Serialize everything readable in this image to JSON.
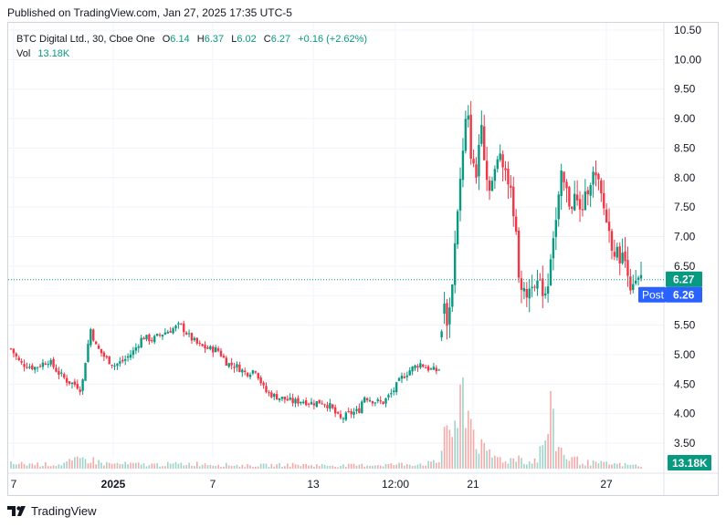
{
  "header": {
    "published": "Published on TradingView.com, Jan 27, 2025 17:35 UTC-5"
  },
  "legend": {
    "symbol": "BTC Digital Ltd., 30, Cboe One",
    "open_label": "O",
    "open": "6.14",
    "high_label": "H",
    "high": "6.37",
    "low_label": "L",
    "low": "6.02",
    "close_label": "C",
    "close": "6.27",
    "change": "+0.16 (+2.62%)",
    "vol_label": "Vol",
    "vol": "13.18K"
  },
  "footer": {
    "brand": "TradingView"
  },
  "colors": {
    "up": "#089981",
    "down": "#f23645",
    "vol_up": "#9ed3ca",
    "vol_down": "#f7a9a7",
    "grid": "#f0f3fa",
    "price_tag": "#089981",
    "post_tag": "#2962ff"
  },
  "chart_data": {
    "type": "candlestick",
    "y_ticks": [
      "10.50",
      "10.00",
      "9.50",
      "9.00",
      "8.50",
      "8.00",
      "7.50",
      "7.00",
      "6.50",
      "6.00",
      "5.50",
      "5.00",
      "4.50",
      "4.00",
      "3.50"
    ],
    "ylim": [
      3.15,
      10.75
    ],
    "x_ticks": [
      "7",
      "2025",
      "7",
      "13",
      "12:00",
      "21",
      "27"
    ],
    "last_price": {
      "value": 6.27,
      "label": "6.27"
    },
    "post_price": {
      "value": 6.26,
      "label": "6.26",
      "tag": "Post"
    },
    "volume_label": "13.18K",
    "price_path": [
      [
        0,
        5.1
      ],
      [
        2,
        4.85
      ],
      [
        5,
        4.78
      ],
      [
        8,
        4.9
      ],
      [
        10,
        4.7
      ],
      [
        12,
        4.55
      ],
      [
        14,
        4.48
      ],
      [
        15,
        4.4
      ],
      [
        16,
        5.0
      ],
      [
        17,
        5.45
      ],
      [
        18,
        5.15
      ],
      [
        20,
        4.95
      ],
      [
        22,
        4.82
      ],
      [
        24,
        4.9
      ],
      [
        26,
        5.05
      ],
      [
        28,
        5.3
      ],
      [
        30,
        5.25
      ],
      [
        32,
        5.35
      ],
      [
        34,
        5.42
      ],
      [
        36,
        5.5
      ],
      [
        38,
        5.3
      ],
      [
        40,
        5.15
      ],
      [
        42,
        5.1
      ],
      [
        44,
        5.08
      ],
      [
        46,
        4.85
      ],
      [
        48,
        4.8
      ],
      [
        50,
        4.68
      ],
      [
        52,
        4.75
      ],
      [
        54,
        4.38
      ],
      [
        56,
        4.3
      ],
      [
        58,
        4.25
      ],
      [
        60,
        4.2
      ],
      [
        62,
        4.22
      ],
      [
        64,
        4.18
      ],
      [
        66,
        4.2
      ],
      [
        68,
        4.12
      ],
      [
        69,
        4.0
      ],
      [
        70,
        3.9
      ],
      [
        72,
        4.0
      ],
      [
        74,
        4.05
      ],
      [
        75,
        4.3
      ],
      [
        77,
        4.22
      ],
      [
        79,
        4.18
      ],
      [
        81,
        4.35
      ],
      [
        83,
        4.6
      ],
      [
        85,
        4.75
      ],
      [
        87,
        4.85
      ],
      [
        89,
        4.75
      ],
      [
        91,
        4.72
      ],
      [
        92,
        5.85
      ],
      [
        93,
        5.5
      ],
      [
        94,
        6.4
      ],
      [
        95,
        7.5
      ],
      [
        96,
        8.3
      ],
      [
        97,
        9.2
      ],
      [
        98,
        8.25
      ],
      [
        99,
        8.0
      ],
      [
        100,
        9.1
      ],
      [
        101,
        8.0
      ],
      [
        102,
        7.85
      ],
      [
        103,
        8.1
      ],
      [
        104,
        8.45
      ],
      [
        105,
        8.2
      ],
      [
        106,
        7.85
      ],
      [
        107,
        7.4
      ],
      [
        108,
        6.4
      ],
      [
        109,
        6.0
      ],
      [
        110,
        6.05
      ],
      [
        111,
        6.3
      ],
      [
        112,
        6.2
      ],
      [
        113,
        6.1
      ],
      [
        114,
        6.05
      ],
      [
        115,
        6.9
      ],
      [
        116,
        7.3
      ],
      [
        117,
        8.0
      ],
      [
        118,
        7.8
      ],
      [
        119,
        7.5
      ],
      [
        120,
        7.7
      ],
      [
        121,
        7.4
      ],
      [
        122,
        7.6
      ],
      [
        123,
        7.95
      ],
      [
        124,
        8.05
      ],
      [
        125,
        7.85
      ],
      [
        126,
        7.5
      ],
      [
        127,
        7.15
      ],
      [
        128,
        6.8
      ],
      [
        129,
        6.7
      ],
      [
        130,
        6.65
      ],
      [
        131,
        6.55
      ],
      [
        132,
        6.05
      ],
      [
        133,
        6.2
      ],
      [
        134,
        6.27
      ]
    ],
    "volume_path": [
      [
        0,
        0.05
      ],
      [
        10,
        0.04
      ],
      [
        16,
        0.1
      ],
      [
        20,
        0.05
      ],
      [
        30,
        0.04
      ],
      [
        40,
        0.05
      ],
      [
        50,
        0.03
      ],
      [
        60,
        0.04
      ],
      [
        70,
        0.03
      ],
      [
        80,
        0.04
      ],
      [
        88,
        0.05
      ],
      [
        91,
        0.06
      ],
      [
        92,
        0.35
      ],
      [
        93,
        0.55
      ],
      [
        94,
        0.25
      ],
      [
        95,
        0.4
      ],
      [
        96,
        0.85
      ],
      [
        97,
        0.6
      ],
      [
        98,
        0.45
      ],
      [
        99,
        0.3
      ],
      [
        100,
        0.2
      ],
      [
        101,
        0.15
      ],
      [
        104,
        0.1
      ],
      [
        106,
        0.08
      ],
      [
        108,
        0.12
      ],
      [
        110,
        0.06
      ],
      [
        112,
        0.1
      ],
      [
        114,
        0.35
      ],
      [
        115,
        0.55
      ],
      [
        116,
        0.25
      ],
      [
        118,
        0.12
      ],
      [
        122,
        0.06
      ],
      [
        126,
        0.05
      ],
      [
        130,
        0.04
      ],
      [
        134,
        0.03
      ]
    ]
  }
}
